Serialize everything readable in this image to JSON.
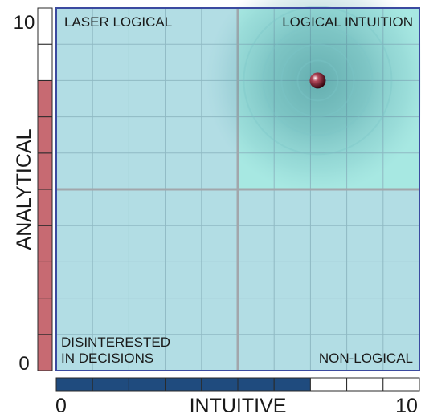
{
  "chart_data": {
    "type": "scatter",
    "title": "",
    "xlabel": "INTUITIVE",
    "ylabel": "ANALYTICAL",
    "xlim": [
      0,
      10
    ],
    "ylim": [
      0,
      10
    ],
    "x_tick_labels": [
      "0",
      "10"
    ],
    "y_tick_labels": [
      "0",
      "10"
    ],
    "quadrants": {
      "top_left": "LASER LOGICAL",
      "top_right": "LOGICAL INTUITION",
      "bottom_left_line1": "DISINTERESTED",
      "bottom_left_line2": "IN DECISIONS",
      "bottom_right": "NON-LOGICAL"
    },
    "point": {
      "x": 7.2,
      "y": 8.0
    },
    "x_bar": {
      "value": 7,
      "segments": 10
    },
    "y_bar": {
      "value": 8,
      "segments": 10
    },
    "colors": {
      "plot_fill": "#b2dde4",
      "highlight_quadrant": "#a7e8e2",
      "grid": "#8fb9c3",
      "midline": "#a2a6ab",
      "frame": "#3b4aa0",
      "x_bar_fill": "#1f4b7e",
      "y_bar_fill": "#c76a72",
      "bar_border": "#2a2a2a",
      "point": "#5a0f1c"
    }
  }
}
